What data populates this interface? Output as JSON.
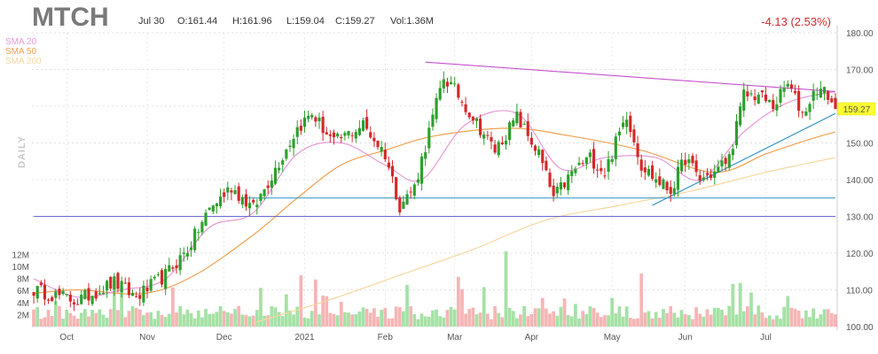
{
  "header": {
    "ticker": "MTCH",
    "date": "Jul 30",
    "open": "O:161.44",
    "high": "H:161.96",
    "low": "L:159.04",
    "close": "C:159.27",
    "volume": "Vol:1.36M",
    "change": "-4.13 (2.53%)",
    "period_label": "DAILY",
    "last_price": "159.27"
  },
  "colors": {
    "up": "#2ca02c",
    "down": "#d62728",
    "sma20": "#e79ad6",
    "sma50": "#f0a050",
    "sma200": "#f5d7a0",
    "trendline": "#c550d0",
    "support": "#2b8fc4",
    "support_low": "#6a6ad0"
  },
  "chart_data": {
    "type": "candlestick",
    "price_axis": {
      "min": 100,
      "max": 180,
      "ticks": [
        100,
        110,
        120,
        130,
        140,
        150,
        160,
        170,
        180
      ]
    },
    "volume_axis": {
      "unit": "M",
      "ticks": [
        "2M",
        "4M",
        "6M",
        "8M",
        "10M",
        "12M"
      ]
    },
    "months": [
      "Oct",
      "Nov",
      "Dec",
      "2021",
      "Feb",
      "Mar",
      "Apr",
      "May",
      "Jun",
      "Jul"
    ],
    "legend": [
      {
        "name": "SMA 20",
        "key": "sma20"
      },
      {
        "name": "SMA 50",
        "key": "sma50"
      },
      {
        "name": "SMA 200",
        "key": "sma200"
      }
    ],
    "anchors": [
      {
        "i": 0,
        "p": 110
      },
      {
        "i": 12,
        "p": 107
      },
      {
        "i": 22,
        "p": 112
      },
      {
        "i": 28,
        "p": 108
      },
      {
        "i": 36,
        "p": 114
      },
      {
        "i": 42,
        "p": 121
      },
      {
        "i": 48,
        "p": 132
      },
      {
        "i": 54,
        "p": 138
      },
      {
        "i": 60,
        "p": 132
      },
      {
        "i": 66,
        "p": 143
      },
      {
        "i": 72,
        "p": 154
      },
      {
        "i": 76,
        "p": 158
      },
      {
        "i": 82,
        "p": 150
      },
      {
        "i": 90,
        "p": 155
      },
      {
        "i": 96,
        "p": 147
      },
      {
        "i": 100,
        "p": 133
      },
      {
        "i": 104,
        "p": 138
      },
      {
        "i": 108,
        "p": 153
      },
      {
        "i": 112,
        "p": 168
      },
      {
        "i": 116,
        "p": 163
      },
      {
        "i": 120,
        "p": 157
      },
      {
        "i": 126,
        "p": 148
      },
      {
        "i": 132,
        "p": 157
      },
      {
        "i": 138,
        "p": 147
      },
      {
        "i": 142,
        "p": 135
      },
      {
        "i": 148,
        "p": 143
      },
      {
        "i": 152,
        "p": 146
      },
      {
        "i": 156,
        "p": 142
      },
      {
        "i": 162,
        "p": 158
      },
      {
        "i": 166,
        "p": 144
      },
      {
        "i": 170,
        "p": 140
      },
      {
        "i": 174,
        "p": 137
      },
      {
        "i": 178,
        "p": 146
      },
      {
        "i": 182,
        "p": 140
      },
      {
        "i": 186,
        "p": 142
      },
      {
        "i": 190,
        "p": 146
      },
      {
        "i": 194,
        "p": 163
      },
      {
        "i": 198,
        "p": 163
      },
      {
        "i": 202,
        "p": 160
      },
      {
        "i": 206,
        "p": 166
      },
      {
        "i": 210,
        "p": 158
      },
      {
        "i": 214,
        "p": 165
      },
      {
        "i": 217,
        "p": 163
      },
      {
        "i": 219,
        "p": 159.27
      }
    ],
    "sma20": [
      [
        0,
        113
      ],
      [
        12,
        108
      ],
      [
        24,
        110
      ],
      [
        36,
        113
      ],
      [
        48,
        127
      ],
      [
        60,
        131
      ],
      [
        72,
        147
      ],
      [
        84,
        150
      ],
      [
        96,
        144
      ],
      [
        106,
        140
      ],
      [
        118,
        155
      ],
      [
        132,
        158
      ],
      [
        144,
        143
      ],
      [
        156,
        146
      ],
      [
        170,
        146
      ],
      [
        182,
        140
      ],
      [
        194,
        153
      ],
      [
        206,
        161
      ],
      [
        219,
        164
      ]
    ],
    "sma50": [
      [
        0,
        109
      ],
      [
        12,
        110
      ],
      [
        30,
        109
      ],
      [
        44,
        114
      ],
      [
        60,
        125
      ],
      [
        72,
        135
      ],
      [
        84,
        144
      ],
      [
        96,
        148
      ],
      [
        110,
        152
      ],
      [
        130,
        154
      ],
      [
        146,
        152
      ],
      [
        166,
        148
      ],
      [
        186,
        142
      ],
      [
        200,
        147
      ],
      [
        212,
        151
      ],
      [
        219,
        153
      ]
    ],
    "sma200": [
      [
        60,
        101
      ],
      [
        80,
        107
      ],
      [
        100,
        114
      ],
      [
        120,
        121
      ],
      [
        140,
        129
      ],
      [
        160,
        133
      ],
      [
        180,
        137
      ],
      [
        200,
        142
      ],
      [
        219,
        146
      ]
    ],
    "trendlines": [
      {
        "key": "trendline",
        "from": [
          107,
          172
        ],
        "to": [
          219,
          164
        ]
      },
      {
        "key": "support",
        "from": [
          169,
          133
        ],
        "to": [
          219,
          158
        ]
      },
      {
        "key": "support",
        "from": [
          57,
          135
        ],
        "to": [
          219,
          135
        ]
      },
      {
        "key": "support_low",
        "from": [
          0,
          130
        ],
        "to": [
          219,
          130
        ]
      }
    ]
  }
}
